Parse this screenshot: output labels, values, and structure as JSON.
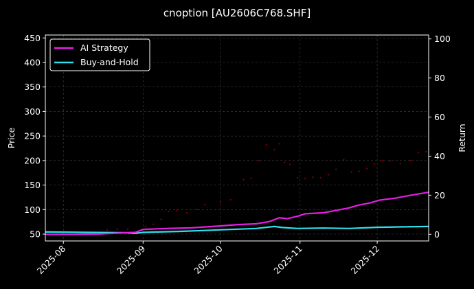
{
  "chart_data": {
    "type": "line",
    "title": "cnoption [AU2606C768.SHF]",
    "xlabel": "",
    "ylabel": "Price",
    "ylabel_right": "Return",
    "x_ticks": [
      "2025-08",
      "2025-09",
      "2025-10",
      "2025-11",
      "2025-12"
    ],
    "x_tick_dates": [
      "2025-08-01",
      "2025-09-01",
      "2025-10-01",
      "2025-11-01",
      "2025-12-01"
    ],
    "xlim": [
      "2025-07-25",
      "2025-12-21"
    ],
    "y_ticks_left": [
      50,
      100,
      150,
      200,
      250,
      300,
      350,
      400,
      450
    ],
    "ylim_left": [
      36,
      456
    ],
    "y_ticks_right": [
      0,
      20,
      40,
      60,
      80,
      100
    ],
    "ylim_right": [
      -3.4,
      102
    ],
    "grid": true,
    "legend_position": "top-left",
    "colors": {
      "background": "#000000",
      "ai_strategy": "#e61ee6",
      "buy_and_hold": "#30e0ee",
      "price_points": "#8b0000",
      "grid": "#444444",
      "text": "#ffffff"
    },
    "series": [
      {
        "name": "AI Strategy",
        "axis": "right",
        "points": [
          [
            "2025-07-25",
            0
          ],
          [
            "2025-08-05",
            0
          ],
          [
            "2025-08-15",
            0.2
          ],
          [
            "2025-08-25",
            0.8
          ],
          [
            "2025-08-29",
            1.0
          ],
          [
            "2025-09-01",
            2.5
          ],
          [
            "2025-09-10",
            3.0
          ],
          [
            "2025-09-20",
            3.3
          ],
          [
            "2025-10-01",
            4.3
          ],
          [
            "2025-10-08",
            5.0
          ],
          [
            "2025-10-15",
            5.4
          ],
          [
            "2025-10-20",
            6.5
          ],
          [
            "2025-10-24",
            8.5
          ],
          [
            "2025-10-27",
            8.0
          ],
          [
            "2025-10-31",
            9.2
          ],
          [
            "2025-11-03",
            10.5
          ],
          [
            "2025-11-10",
            11.0
          ],
          [
            "2025-11-14",
            12.0
          ],
          [
            "2025-11-20",
            13.5
          ],
          [
            "2025-11-24",
            15.0
          ],
          [
            "2025-11-28",
            16.0
          ],
          [
            "2025-12-02",
            17.5
          ],
          [
            "2025-12-08",
            18.5
          ],
          [
            "2025-12-14",
            20.0
          ],
          [
            "2025-12-21",
            21.5
          ]
        ]
      },
      {
        "name": "Buy-and-Hold",
        "axis": "right",
        "points": [
          [
            "2025-07-25",
            1.2
          ],
          [
            "2025-08-10",
            1.0
          ],
          [
            "2025-08-25",
            0.8
          ],
          [
            "2025-08-29",
            0.5
          ],
          [
            "2025-09-01",
            1.0
          ],
          [
            "2025-09-15",
            1.5
          ],
          [
            "2025-10-01",
            2.3
          ],
          [
            "2025-10-15",
            3.0
          ],
          [
            "2025-10-22",
            4.0
          ],
          [
            "2025-10-25",
            3.5
          ],
          [
            "2025-10-31",
            3.0
          ],
          [
            "2025-11-10",
            3.2
          ],
          [
            "2025-11-20",
            3.0
          ],
          [
            "2025-12-01",
            3.6
          ],
          [
            "2025-12-10",
            3.8
          ],
          [
            "2025-12-21",
            4.0
          ]
        ]
      },
      {
        "name": "",
        "type": "scatter",
        "axis": "left",
        "points": [
          [
            "2025-08-18",
            58
          ],
          [
            "2025-08-22",
            60
          ],
          [
            "2025-08-26",
            60
          ],
          [
            "2025-09-02",
            66
          ],
          [
            "2025-09-05",
            70
          ],
          [
            "2025-09-08",
            80
          ],
          [
            "2025-09-11",
            96
          ],
          [
            "2025-09-14",
            98
          ],
          [
            "2025-09-18",
            93
          ],
          [
            "2025-09-22",
            100
          ],
          [
            "2025-09-25",
            110
          ],
          [
            "2025-10-01",
            115
          ],
          [
            "2025-10-05",
            120
          ],
          [
            "2025-10-10",
            161
          ],
          [
            "2025-10-13",
            164
          ],
          [
            "2025-10-16",
            200
          ],
          [
            "2025-10-19",
            232
          ],
          [
            "2025-10-22",
            222
          ],
          [
            "2025-10-24",
            234
          ],
          [
            "2025-10-26",
            196
          ],
          [
            "2025-10-28",
            192
          ],
          [
            "2025-10-31",
            165
          ],
          [
            "2025-11-03",
            163
          ],
          [
            "2025-11-06",
            166
          ],
          [
            "2025-11-09",
            165
          ],
          [
            "2025-11-12",
            171
          ],
          [
            "2025-11-15",
            182
          ],
          [
            "2025-11-18",
            202
          ],
          [
            "2025-11-21",
            177
          ],
          [
            "2025-11-24",
            178
          ],
          [
            "2025-11-27",
            184
          ],
          [
            "2025-11-30",
            193
          ],
          [
            "2025-12-03",
            200
          ],
          [
            "2025-12-06",
            199
          ],
          [
            "2025-12-10",
            194
          ],
          [
            "2025-12-14",
            200
          ],
          [
            "2025-12-17",
            216
          ],
          [
            "2025-12-20",
            218
          ]
        ]
      }
    ]
  }
}
